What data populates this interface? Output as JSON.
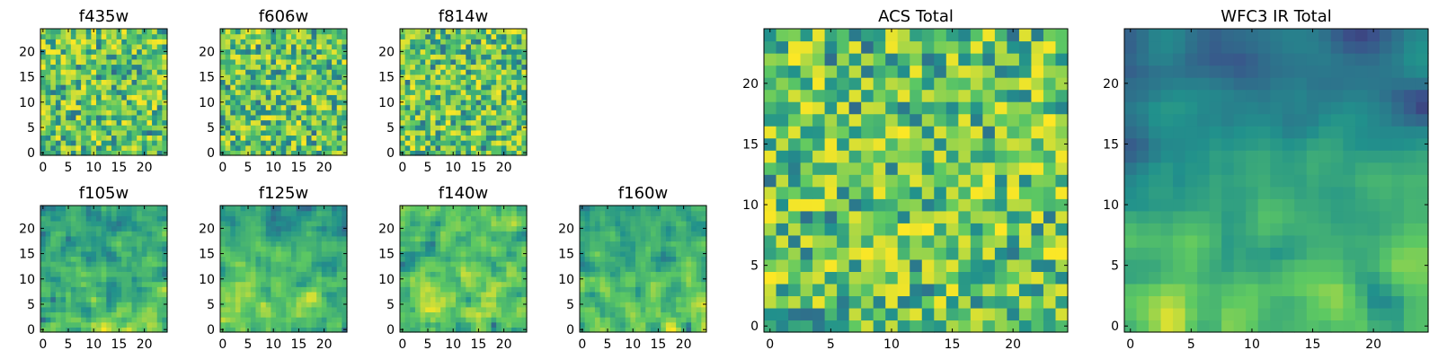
{
  "chart_data": [
    {
      "id": "f435w",
      "type": "heatmap",
      "title": "f435w",
      "grid_size": 25,
      "seed": 11,
      "smooth": 0,
      "trend": 0,
      "xticks": [
        0,
        5,
        10,
        15,
        20
      ],
      "yticks": [
        0,
        5,
        10,
        15,
        20
      ],
      "xlim": [
        0,
        25
      ],
      "ylim": [
        0,
        25
      ]
    },
    {
      "id": "f606w",
      "type": "heatmap",
      "title": "f606w",
      "grid_size": 25,
      "seed": 23,
      "smooth": 0,
      "trend": 0,
      "xticks": [
        0,
        5,
        10,
        15,
        20
      ],
      "yticks": [
        0,
        5,
        10,
        15,
        20
      ],
      "xlim": [
        0,
        25
      ],
      "ylim": [
        0,
        25
      ]
    },
    {
      "id": "f814w",
      "type": "heatmap",
      "title": "f814w",
      "grid_size": 25,
      "seed": 37,
      "smooth": 0,
      "trend": 0,
      "xticks": [
        0,
        5,
        10,
        15,
        20
      ],
      "yticks": [
        0,
        5,
        10,
        15,
        20
      ],
      "xlim": [
        0,
        25
      ],
      "ylim": [
        0,
        25
      ]
    },
    {
      "id": "f105w",
      "type": "heatmap",
      "title": "f105w",
      "grid_size": 25,
      "seed": 41,
      "smooth": 1,
      "trend": 0.35,
      "xticks": [
        0,
        5,
        10,
        15,
        20
      ],
      "yticks": [
        0,
        5,
        10,
        15,
        20
      ],
      "xlim": [
        0,
        25
      ],
      "ylim": [
        0,
        25
      ]
    },
    {
      "id": "f125w",
      "type": "heatmap",
      "title": "f125w",
      "grid_size": 25,
      "seed": 53,
      "smooth": 1,
      "trend": 0.4,
      "xticks": [
        0,
        5,
        10,
        15,
        20
      ],
      "yticks": [
        0,
        5,
        10,
        15,
        20
      ],
      "xlim": [
        0,
        25
      ],
      "ylim": [
        0,
        25
      ]
    },
    {
      "id": "f140w",
      "type": "heatmap",
      "title": "f140w",
      "grid_size": 25,
      "seed": 67,
      "smooth": 1,
      "trend": 0.15,
      "xticks": [
        0,
        5,
        10,
        15,
        20
      ],
      "yticks": [
        0,
        5,
        10,
        15,
        20
      ],
      "xlim": [
        0,
        25
      ],
      "ylim": [
        0,
        25
      ]
    },
    {
      "id": "f160w",
      "type": "heatmap",
      "title": "f160w",
      "grid_size": 25,
      "seed": 79,
      "smooth": 1,
      "trend": 0.4,
      "xticks": [
        0,
        5,
        10,
        15,
        20
      ],
      "yticks": [
        0,
        5,
        10,
        15,
        20
      ],
      "xlim": [
        0,
        25
      ],
      "ylim": [
        0,
        25
      ]
    },
    {
      "id": "acs-total",
      "type": "heatmap",
      "title": "ACS Total",
      "grid_size": 25,
      "seed": 97,
      "smooth": 0,
      "trend": 0,
      "xticks": [
        0,
        5,
        10,
        15,
        20
      ],
      "yticks": [
        0,
        5,
        10,
        15,
        20
      ],
      "xlim": [
        0,
        25
      ],
      "ylim": [
        0,
        25
      ]
    },
    {
      "id": "wfc3-ir-total",
      "type": "heatmap",
      "title": "WFC3 IR Total",
      "grid_size": 25,
      "seed": 113,
      "smooth": 2,
      "trend": 0.75,
      "xticks": [
        0,
        5,
        10,
        15,
        20
      ],
      "yticks": [
        0,
        5,
        10,
        15,
        20
      ],
      "xlim": [
        0,
        25
      ],
      "ylim": [
        0,
        25
      ]
    }
  ],
  "colormap": [
    "#440154",
    "#3b528b",
    "#21918c",
    "#5ec962",
    "#fde725"
  ]
}
